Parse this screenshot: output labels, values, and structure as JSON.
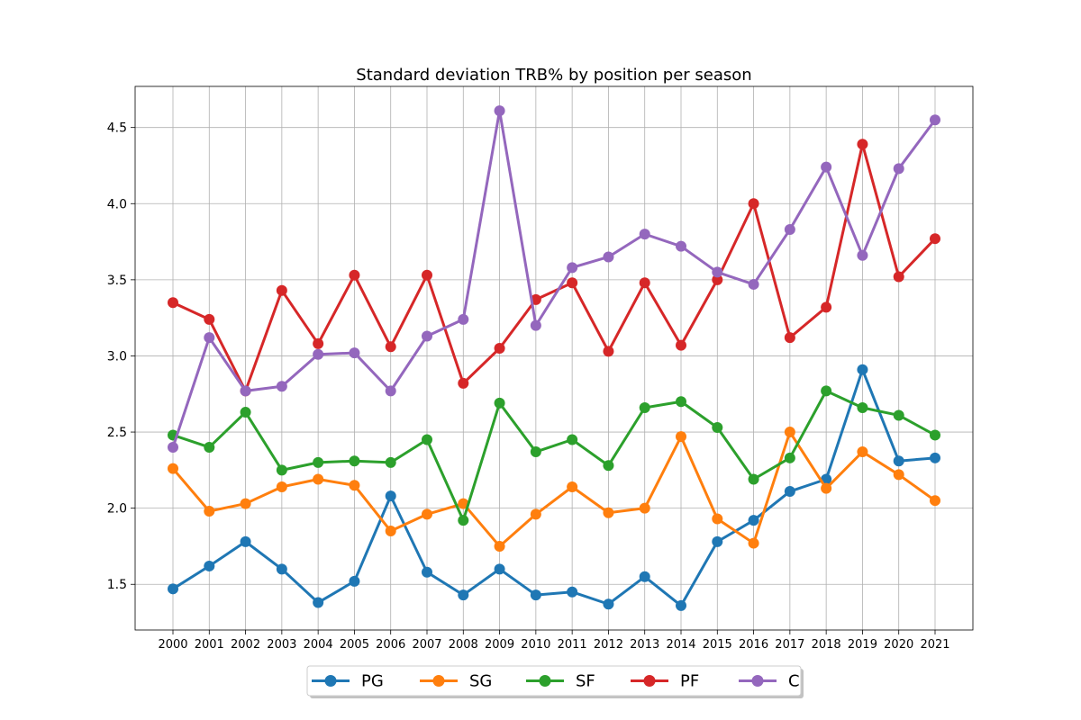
{
  "chart_data": {
    "type": "line",
    "title": "Standard deviation TRB% by position per season",
    "xlabel": "",
    "ylabel": "",
    "categories": [
      "2000",
      "2001",
      "2002",
      "2003",
      "2004",
      "2005",
      "2006",
      "2007",
      "2008",
      "2009",
      "2010",
      "2011",
      "2012",
      "2013",
      "2014",
      "2015",
      "2016",
      "2017",
      "2018",
      "2019",
      "2020",
      "2021"
    ],
    "ylim": [
      1.2,
      4.77
    ],
    "yticks": [
      1.5,
      2.0,
      2.5,
      3.0,
      3.5,
      4.0,
      4.5
    ],
    "ytick_labels": [
      "1.5",
      "2.0",
      "2.5",
      "3.0",
      "3.5",
      "4.0",
      "4.5"
    ],
    "grid": true,
    "legend_position": "bottom-center",
    "series": [
      {
        "name": "PG",
        "color": "#1f77b4",
        "values": [
          1.47,
          1.62,
          1.78,
          1.6,
          1.38,
          1.52,
          2.08,
          1.58,
          1.43,
          1.6,
          1.43,
          1.45,
          1.37,
          1.55,
          1.36,
          1.78,
          1.92,
          2.11,
          2.19,
          2.91,
          2.31,
          2.33
        ]
      },
      {
        "name": "SG",
        "color": "#ff7f0e",
        "values": [
          2.26,
          1.98,
          2.03,
          2.14,
          2.19,
          2.15,
          1.85,
          1.96,
          2.03,
          1.75,
          1.96,
          2.14,
          1.97,
          2.0,
          2.47,
          1.93,
          1.77,
          2.5,
          2.13,
          2.37,
          2.22,
          2.05
        ]
      },
      {
        "name": "SF",
        "color": "#2ca02c",
        "values": [
          2.48,
          2.4,
          2.63,
          2.25,
          2.3,
          2.31,
          2.3,
          2.45,
          1.92,
          2.69,
          2.37,
          2.45,
          2.28,
          2.66,
          2.7,
          2.53,
          2.19,
          2.33,
          2.77,
          2.66,
          2.61,
          2.48
        ]
      },
      {
        "name": "PF",
        "color": "#d62728",
        "values": [
          3.35,
          3.24,
          2.77,
          3.43,
          3.08,
          3.53,
          3.06,
          3.53,
          2.82,
          3.05,
          3.37,
          3.48,
          3.03,
          3.48,
          3.07,
          3.5,
          4.0,
          3.12,
          3.32,
          4.39,
          3.52,
          3.77
        ]
      },
      {
        "name": "C",
        "color": "#9467bd",
        "values": [
          2.4,
          3.12,
          2.77,
          2.8,
          3.01,
          3.02,
          2.77,
          3.13,
          3.24,
          4.61,
          3.2,
          3.58,
          3.65,
          3.8,
          3.72,
          3.55,
          3.47,
          3.83,
          4.24,
          3.66,
          4.23,
          4.55
        ]
      }
    ]
  }
}
